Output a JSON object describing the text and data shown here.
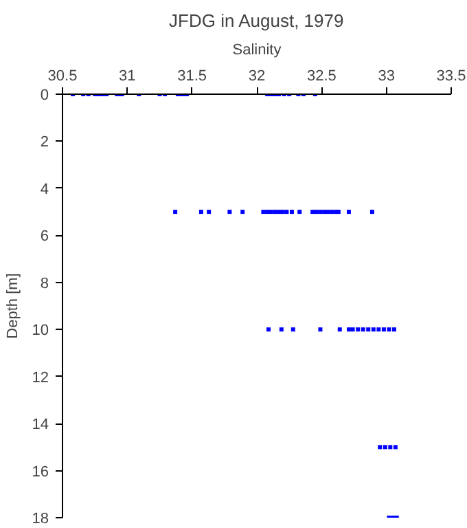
{
  "chart_data": {
    "type": "scatter",
    "title": "JFDG in August, 1979",
    "xlabel": "Salinity",
    "ylabel": "Depth [m]",
    "x": [
      30.58,
      30.66,
      30.7,
      30.75,
      30.78,
      30.81,
      30.84,
      30.92,
      30.94,
      30.96,
      31.09,
      31.25,
      31.29,
      31.39,
      31.42,
      31.44,
      31.46,
      32.08,
      32.11,
      32.14,
      32.17,
      32.21,
      32.25,
      32.32,
      32.36,
      32.45,
      31.37,
      31.57,
      31.63,
      31.79,
      31.89,
      32.05,
      32.08,
      32.11,
      32.14,
      32.17,
      32.2,
      32.23,
      32.27,
      32.33,
      32.43,
      32.46,
      32.49,
      32.52,
      32.55,
      32.58,
      32.61,
      32.63,
      32.71,
      32.89,
      32.09,
      32.19,
      32.28,
      32.49,
      32.64,
      32.71,
      32.74,
      32.78,
      32.82,
      32.86,
      32.9,
      32.94,
      32.98,
      33.02,
      33.06,
      32.95,
      32.99,
      33.03,
      33.07,
      33.02,
      33.05,
      33.08
    ],
    "values": [
      0,
      0,
      0,
      0,
      0,
      0,
      0,
      0,
      0,
      0,
      0,
      0,
      0,
      0,
      0,
      0,
      0,
      0,
      0,
      0,
      0,
      0,
      0,
      0,
      0,
      0,
      5,
      5,
      5,
      5,
      5,
      5,
      5,
      5,
      5,
      5,
      5,
      5,
      5,
      5,
      5,
      5,
      5,
      5,
      5,
      5,
      5,
      5,
      5,
      5,
      10,
      10,
      10,
      10,
      10,
      10,
      10,
      10,
      10,
      10,
      10,
      10,
      10,
      10,
      10,
      15,
      15,
      15,
      15,
      18,
      18,
      18
    ],
    "color": "#0000ff",
    "marker": "square",
    "xlim": [
      30.5,
      33.5
    ],
    "xticks": [
      30.5,
      31,
      31.5,
      32,
      32.5,
      33,
      33.5
    ],
    "ylim": [
      18,
      0
    ],
    "yticks": [
      0,
      2,
      4,
      6,
      8,
      10,
      12,
      14,
      16,
      18
    ],
    "grid": false
  }
}
